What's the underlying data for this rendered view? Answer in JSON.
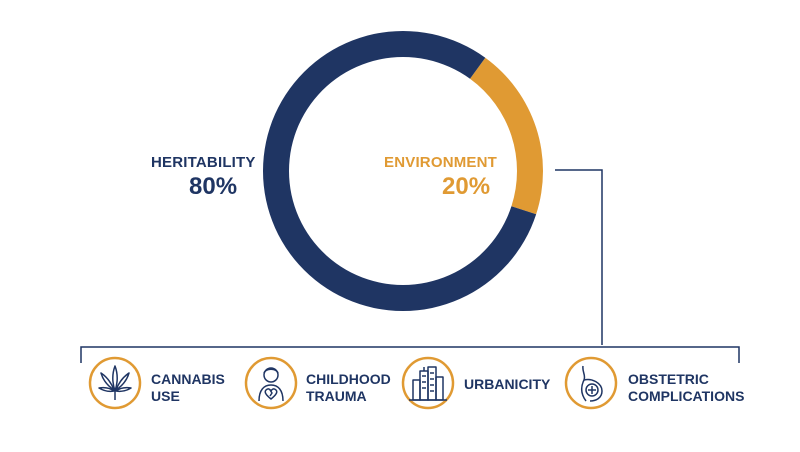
{
  "chart_data": {
    "type": "pie",
    "variant": "donut",
    "slices": [
      {
        "name": "HERITABILITY",
        "value": 80,
        "label": "80%",
        "color": "#1f3563"
      },
      {
        "name": "ENVIRONMENT",
        "value": 20,
        "label": "20%",
        "color": "#e09a33"
      }
    ]
  },
  "labels": {
    "heritability": {
      "name": "HERITABILITY",
      "percent": "80%"
    },
    "environment": {
      "name": "ENVIRONMENT",
      "percent": "20%"
    }
  },
  "factors": [
    {
      "icon": "cannabis-icon",
      "line1": "CANNABIS",
      "line2": "USE"
    },
    {
      "icon": "childhood-trauma-icon",
      "line1": "CHILDHOOD",
      "line2": "TRAUMA"
    },
    {
      "icon": "urbanicity-icon",
      "line1": "URBANICITY",
      "line2": ""
    },
    {
      "icon": "pregnancy-icon",
      "line1": "OBSTETRIC",
      "line2": "COMPLICATIONS"
    }
  ],
  "colors": {
    "navy": "#1f3563",
    "orange": "#e09a33",
    "connector": "#1f3563"
  }
}
